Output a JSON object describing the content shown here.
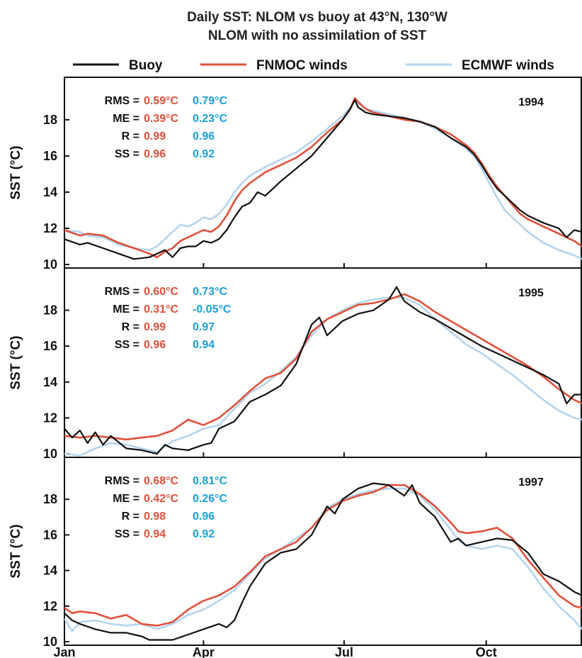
{
  "chart_data": {
    "type": "line",
    "title": "Daily SST: NLOM vs buoy at 43°N, 130°W",
    "subtitle": "NLOM with no assimilation of SST",
    "legend": [
      {
        "name": "Buoy",
        "color": "#111111"
      },
      {
        "name": "FNMOC winds",
        "color": "#e0503a"
      },
      {
        "name": "ECMWF winds",
        "color": "#b4d4ec"
      }
    ],
    "ylabel": "SST (°C)",
    "ylim": [
      10,
      19.8
    ],
    "yticks": [
      "10",
      "12",
      "14",
      "16",
      "18"
    ],
    "x_ticks": [
      "Jan",
      "Apr",
      "Jul",
      "Oct"
    ],
    "x_tick_days": [
      0,
      90,
      181,
      273
    ],
    "xlim": [
      0,
      335
    ],
    "stat_colors": {
      "label": "#111111",
      "fnmoc": "#e0503a",
      "ecmwf": "#1aa0d8"
    },
    "panels": [
      {
        "year": "1994",
        "stats": [
          {
            "label": "RMS =",
            "fnmoc": "0.59°C",
            "ecmwf": "0.79°C"
          },
          {
            "label": "ME =",
            "fnmoc": "0.39°C",
            "ecmwf": "0.23°C"
          },
          {
            "label": "R =",
            "fnmoc": "0.99",
            "ecmwf": "0.96"
          },
          {
            "label": "SS =",
            "fnmoc": "0.96",
            "ecmwf": "0.92"
          }
        ],
        "series": [
          {
            "name": "ECMWF winds",
            "color": "#b4d4ec",
            "x": [
              0,
              10,
              15,
              25,
              35,
              45,
              55,
              60,
              65,
              70,
              75,
              80,
              85,
              90,
              95,
              100,
              105,
              110,
              115,
              120,
              130,
              140,
              150,
              160,
              170,
              180,
              185,
              188,
              190,
              195,
              200,
              210,
              220,
              230,
              240,
              250,
              260,
              265,
              270,
              275,
              280,
              285,
              290,
              295,
              300,
              310,
              320,
              330,
              335
            ],
            "y": [
              11.9,
              11.8,
              11.6,
              11.5,
              11.1,
              10.9,
              10.8,
              11.0,
              11.4,
              11.8,
              12.2,
              12.1,
              12.3,
              12.6,
              12.5,
              12.8,
              13.3,
              14.0,
              14.5,
              14.9,
              15.4,
              15.8,
              16.2,
              16.8,
              17.5,
              18.2,
              18.7,
              19.1,
              18.9,
              18.6,
              18.5,
              18.3,
              18.1,
              17.9,
              17.5,
              17.0,
              16.4,
              16.0,
              15.3,
              14.5,
              13.7,
              13.0,
              12.6,
              12.2,
              11.8,
              11.2,
              10.8,
              10.5,
              10.3
            ]
          },
          {
            "name": "FNMOC winds",
            "color": "#e0503a",
            "x": [
              0,
              10,
              15,
              25,
              35,
              45,
              55,
              60,
              65,
              70,
              75,
              80,
              85,
              90,
              95,
              100,
              105,
              110,
              115,
              120,
              130,
              140,
              150,
              160,
              170,
              180,
              185,
              188,
              190,
              195,
              200,
              210,
              220,
              230,
              240,
              250,
              260,
              265,
              270,
              275,
              280,
              285,
              290,
              295,
              300,
              310,
              320,
              330,
              335
            ],
            "y": [
              11.9,
              11.6,
              11.7,
              11.6,
              11.2,
              10.9,
              10.6,
              10.4,
              10.7,
              10.9,
              11.3,
              11.5,
              11.7,
              11.9,
              11.8,
              12.1,
              12.7,
              13.5,
              14.1,
              14.5,
              15.1,
              15.5,
              15.9,
              16.5,
              17.3,
              18.0,
              18.6,
              19.2,
              19.0,
              18.6,
              18.4,
              18.2,
              18.0,
              17.9,
              17.6,
              17.2,
              16.6,
              16.2,
              15.6,
              14.9,
              14.3,
              13.8,
              13.3,
              12.8,
              12.5,
              12.1,
              11.7,
              11.3,
              11.0
            ]
          },
          {
            "name": "Buoy",
            "color": "#111111",
            "x": [
              0,
              10,
              15,
              25,
              35,
              45,
              55,
              60,
              65,
              70,
              75,
              80,
              85,
              90,
              95,
              100,
              105,
              110,
              115,
              120,
              125,
              130,
              140,
              150,
              160,
              170,
              180,
              185,
              188,
              190,
              195,
              200,
              210,
              220,
              230,
              240,
              250,
              260,
              265,
              270,
              275,
              280,
              285,
              290,
              295,
              300,
              310,
              320,
              325,
              330,
              335
            ],
            "y": [
              11.4,
              11.1,
              11.2,
              10.9,
              10.6,
              10.3,
              10.4,
              10.6,
              10.8,
              10.4,
              10.9,
              11.0,
              11.0,
              11.3,
              11.2,
              11.4,
              11.9,
              12.6,
              13.2,
              13.4,
              14.0,
              13.8,
              14.6,
              15.3,
              16.0,
              17.0,
              18.0,
              18.6,
              19.1,
              18.7,
              18.4,
              18.3,
              18.2,
              18.1,
              17.9,
              17.6,
              17.0,
              16.5,
              16.1,
              15.5,
              14.8,
              14.2,
              13.8,
              13.4,
              13.0,
              12.7,
              12.3,
              12.0,
              11.5,
              11.9,
              11.8
            ]
          }
        ]
      },
      {
        "year": "1995",
        "stats": [
          {
            "label": "RMS =",
            "fnmoc": "0.60°C",
            "ecmwf": "0.73°C"
          },
          {
            "label": "ME =",
            "fnmoc": "0.31°C",
            "ecmwf": "-0.05°C"
          },
          {
            "label": "R =",
            "fnmoc": "0.99",
            "ecmwf": "0.97"
          },
          {
            "label": "SS =",
            "fnmoc": "0.96",
            "ecmwf": "0.94"
          }
        ],
        "series": [
          {
            "name": "ECMWF winds",
            "color": "#b4d4ec",
            "x": [
              0,
              10,
              20,
              30,
              40,
              50,
              60,
              70,
              80,
              90,
              100,
              110,
              120,
              130,
              140,
              150,
              160,
              170,
              180,
              190,
              200,
              210,
              220,
              230,
              240,
              250,
              260,
              270,
              280,
              290,
              300,
              310,
              320,
              330,
              335
            ],
            "y": [
              10.0,
              9.9,
              10.3,
              10.6,
              10.5,
              10.3,
              10.1,
              10.7,
              11.0,
              11.4,
              11.6,
              12.5,
              13.4,
              13.9,
              14.6,
              15.4,
              16.6,
              17.5,
              18.0,
              18.4,
              18.6,
              18.7,
              18.7,
              18.3,
              17.5,
              16.8,
              16.1,
              15.6,
              15.0,
              14.4,
              13.7,
              13.0,
              12.4,
              12.0,
              11.9
            ]
          },
          {
            "name": "FNMOC winds",
            "color": "#e0503a",
            "x": [
              0,
              10,
              20,
              30,
              40,
              50,
              60,
              70,
              80,
              90,
              100,
              110,
              120,
              130,
              140,
              150,
              160,
              170,
              180,
              190,
              200,
              210,
              220,
              230,
              240,
              250,
              260,
              270,
              280,
              290,
              300,
              310,
              320,
              330,
              335
            ],
            "y": [
              11.0,
              10.9,
              11.0,
              10.9,
              10.8,
              10.9,
              11.0,
              11.3,
              11.9,
              11.6,
              12.0,
              12.7,
              13.5,
              14.2,
              14.5,
              15.3,
              16.8,
              17.5,
              17.9,
              18.3,
              18.4,
              18.6,
              18.9,
              18.5,
              17.9,
              17.4,
              16.9,
              16.4,
              15.9,
              15.4,
              14.9,
              14.3,
              13.6,
              13.0,
              12.8
            ]
          },
          {
            "name": "Buoy",
            "color": "#111111",
            "x": [
              0,
              5,
              10,
              15,
              20,
              25,
              30,
              40,
              50,
              60,
              65,
              70,
              80,
              90,
              95,
              100,
              110,
              120,
              130,
              140,
              150,
              160,
              165,
              170,
              180,
              190,
              200,
              210,
              215,
              220,
              225,
              230,
              240,
              250,
              260,
              270,
              280,
              290,
              300,
              310,
              320,
              325,
              330,
              335
            ],
            "y": [
              11.4,
              10.9,
              11.3,
              10.6,
              11.2,
              10.5,
              11.0,
              10.3,
              10.2,
              10.0,
              10.5,
              10.3,
              10.2,
              10.5,
              10.6,
              11.4,
              11.8,
              12.9,
              13.3,
              13.8,
              15.0,
              17.2,
              17.6,
              16.6,
              17.4,
              17.8,
              18.0,
              18.6,
              19.3,
              18.5,
              18.2,
              17.9,
              17.5,
              17.0,
              16.5,
              16.0,
              15.6,
              15.2,
              14.8,
              14.4,
              13.9,
              12.8,
              13.3,
              13.3
            ]
          }
        ]
      },
      {
        "year": "1997",
        "stats": [
          {
            "label": "RMS =",
            "fnmoc": "0.68°C",
            "ecmwf": "0.81°C"
          },
          {
            "label": "ME =",
            "fnmoc": "0.42°C",
            "ecmwf": "0.26°C"
          },
          {
            "label": "R =",
            "fnmoc": "0.98",
            "ecmwf": "0.96"
          },
          {
            "label": "SS =",
            "fnmoc": "0.94",
            "ecmwf": "0.92"
          }
        ],
        "series": [
          {
            "name": "ECMWF winds",
            "color": "#b4d4ec",
            "x": [
              0,
              5,
              10,
              20,
              30,
              40,
              50,
              60,
              70,
              80,
              90,
              100,
              110,
              120,
              130,
              140,
              150,
              160,
              170,
              180,
              190,
              200,
              210,
              220,
              230,
              240,
              250,
              255,
              260,
              270,
              280,
              290,
              300,
              310,
              320,
              330,
              335
            ],
            "y": [
              11.3,
              10.6,
              11.1,
              11.2,
              11.0,
              10.9,
              11.0,
              10.7,
              11.0,
              11.5,
              11.8,
              12.3,
              12.9,
              13.8,
              14.7,
              15.2,
              15.8,
              16.4,
              17.5,
              18.0,
              18.3,
              18.5,
              18.6,
              18.6,
              18.2,
              17.4,
              16.3,
              15.7,
              15.4,
              15.2,
              15.4,
              15.2,
              14.2,
              13.0,
              12.0,
              11.2,
              10.7
            ]
          },
          {
            "name": "FNMOC winds",
            "color": "#e0503a",
            "x": [
              0,
              5,
              10,
              20,
              30,
              40,
              50,
              60,
              70,
              80,
              90,
              100,
              110,
              120,
              130,
              140,
              150,
              160,
              170,
              180,
              190,
              200,
              210,
              220,
              230,
              240,
              250,
              255,
              260,
              270,
              280,
              290,
              300,
              310,
              320,
              330,
              335
            ],
            "y": [
              11.9,
              11.6,
              11.7,
              11.6,
              11.3,
              11.5,
              11.0,
              10.9,
              11.1,
              11.8,
              12.3,
              12.6,
              13.1,
              13.9,
              14.8,
              15.2,
              15.6,
              16.4,
              17.4,
              17.9,
              18.2,
              18.4,
              18.8,
              18.8,
              18.3,
              17.6,
              16.7,
              16.2,
              16.1,
              16.2,
              16.4,
              15.8,
              14.6,
              13.6,
              12.6,
              12.0,
              11.9
            ]
          },
          {
            "name": "Buoy",
            "color": "#111111",
            "x": [
              0,
              5,
              10,
              20,
              30,
              40,
              50,
              55,
              60,
              70,
              80,
              90,
              100,
              105,
              110,
              115,
              120,
              130,
              140,
              150,
              160,
              170,
              175,
              180,
              190,
              200,
              210,
              215,
              220,
              225,
              230,
              240,
              250,
              255,
              260,
              270,
              280,
              290,
              300,
              310,
              320,
              330,
              335
            ],
            "y": [
              11.6,
              11.2,
              11.0,
              10.7,
              10.5,
              10.5,
              10.3,
              10.1,
              10.1,
              10.1,
              10.4,
              10.7,
              11.0,
              10.8,
              11.2,
              12.2,
              13.1,
              14.4,
              15.0,
              15.2,
              16.0,
              17.6,
              17.2,
              18.0,
              18.6,
              18.9,
              18.8,
              18.5,
              18.2,
              18.8,
              17.8,
              17.0,
              15.6,
              15.8,
              15.4,
              15.6,
              15.8,
              15.7,
              15.0,
              13.8,
              13.4,
              12.8,
              12.6
            ]
          }
        ]
      }
    ]
  }
}
